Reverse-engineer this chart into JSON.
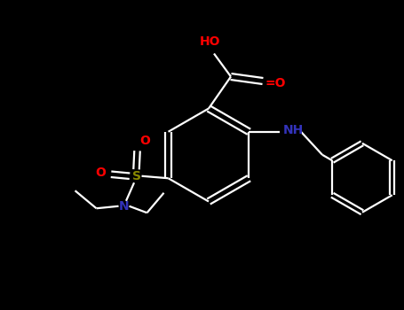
{
  "background": "#000000",
  "bond_color": "#ffffff",
  "bond_width": 1.6,
  "colors": {
    "O": "#ff0000",
    "N": "#3333bb",
    "S": "#888800"
  },
  "figsize": [
    4.55,
    3.5
  ],
  "dpi": 100,
  "xlim": [
    0,
    9.1
  ],
  "ylim": [
    0,
    7.0
  ]
}
